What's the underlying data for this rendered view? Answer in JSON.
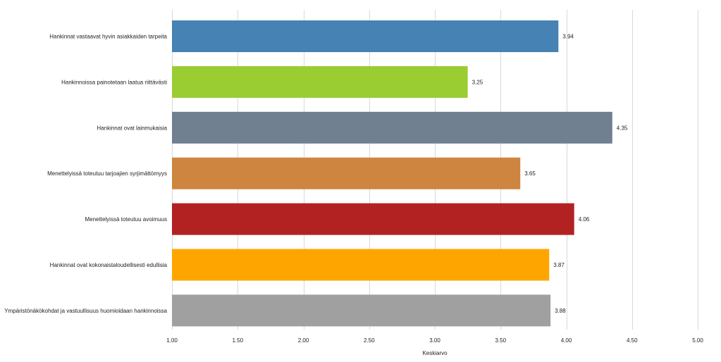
{
  "chart_data": {
    "type": "bar",
    "orientation": "horizontal",
    "categories": [
      "Hankinnat vastaavat hyvin asiakkaiden tarpeita",
      "Hankinnoissa painotetaan laatua riittävästi",
      "Hankinnat ovat lainmukaisia",
      "Menettelyissä toteutuu tarjoajien syrjimättömyys",
      "Menettelyissä toteutuu avoimuus",
      "Hankinnat ovat kokonaistaloudellisesti edullisia",
      "Ympäristönäkökohdat ja vastuullisuus huomioidaan hankinnoissa"
    ],
    "values": [
      3.94,
      3.25,
      4.35,
      3.65,
      4.06,
      3.87,
      3.88
    ],
    "value_labels": [
      "3.94",
      "3.25",
      "4.35",
      "3.65",
      "4.06",
      "3.87",
      "3.88"
    ],
    "colors": [
      "#4682b4",
      "#9acd32",
      "#708090",
      "#cd853f",
      "#b22222",
      "#ffa500",
      "#a0a0a0"
    ],
    "xlabel": "Keskiarvo",
    "ylabel": "",
    "title": "",
    "xlim": [
      1.0,
      5.0
    ],
    "xticks": [
      1.0,
      1.5,
      2.0,
      2.5,
      3.0,
      3.5,
      4.0,
      4.5,
      5.0
    ],
    "xtick_labels": [
      "1.00",
      "1.50",
      "2.00",
      "2.50",
      "3.00",
      "3.50",
      "4.00",
      "4.50",
      "5.00"
    ],
    "grid": "vertical",
    "grid_color": "#d9d9d9",
    "legend": "none"
  }
}
